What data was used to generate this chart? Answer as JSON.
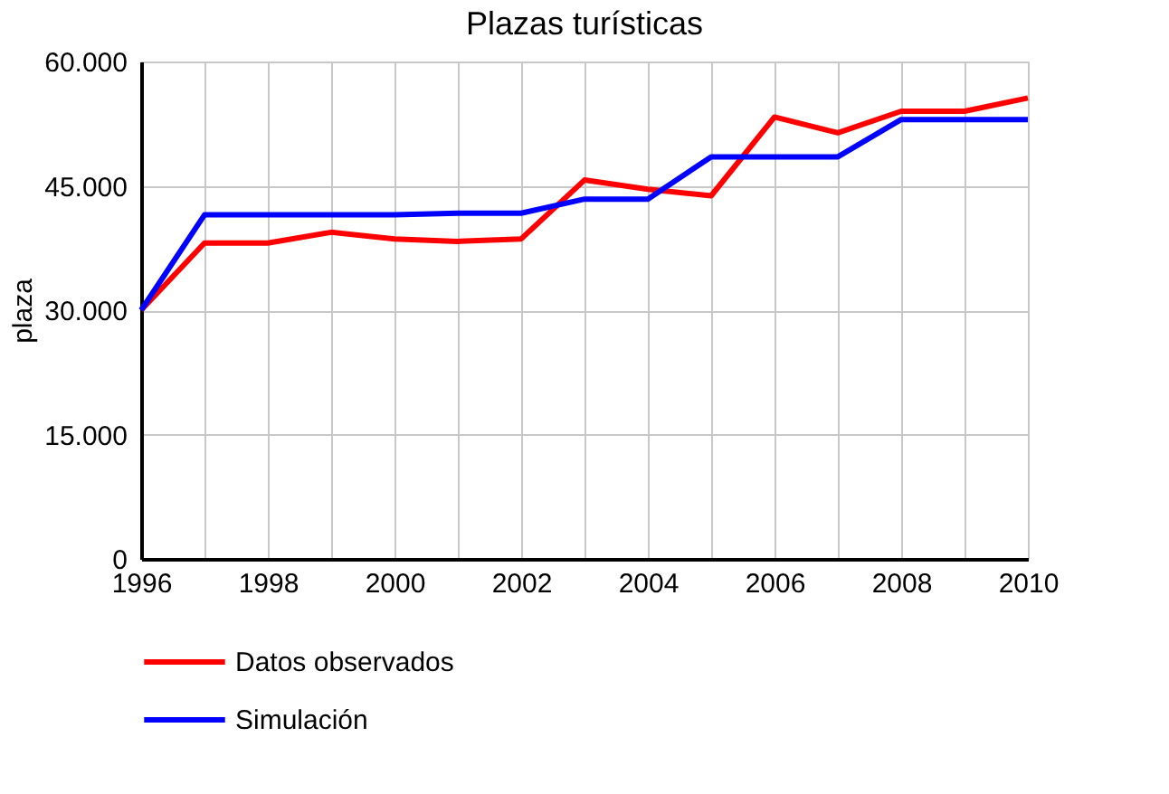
{
  "chart_data": {
    "type": "line",
    "title": "Plazas turísticas",
    "ylabel": "plaza",
    "x": [
      1996,
      1997,
      1998,
      1999,
      2000,
      2001,
      2002,
      2003,
      2004,
      2005,
      2006,
      2007,
      2008,
      2009,
      2010
    ],
    "series": [
      {
        "name": "Datos observados",
        "color": "#ff0000",
        "values": [
          30000,
          38100,
          38100,
          39400,
          38600,
          38300,
          38600,
          45700,
          44600,
          43800,
          53300,
          51400,
          54000,
          54000,
          55600
        ]
      },
      {
        "name": "Simulación",
        "color": "#0000ff",
        "values": [
          30000,
          41500,
          41500,
          41500,
          41500,
          41700,
          41700,
          43400,
          43400,
          48500,
          48500,
          48500,
          53000,
          53000,
          53000
        ]
      }
    ],
    "xlim": [
      1996,
      2010
    ],
    "xticks": [
      1996,
      {
        "value": 1997,
        "label": null
      },
      1998,
      {
        "value": 1999,
        "label": null
      },
      2000,
      {
        "value": 2001,
        "label": null
      },
      2002,
      {
        "value": 2003,
        "label": null
      },
      2004,
      {
        "value": 2005,
        "label": null
      },
      2006,
      {
        "value": 2007,
        "label": null
      },
      2008,
      {
        "value": 2009,
        "label": null
      },
      2010
    ],
    "ylim": [
      0,
      60000
    ],
    "yticks": [
      0,
      {
        "value": 15000,
        "label": "15.000"
      },
      {
        "value": 30000,
        "label": "30.000"
      },
      {
        "value": 45000,
        "label": "45.000"
      },
      {
        "value": 60000,
        "label": "60.000"
      }
    ],
    "grid": true,
    "legend": "bottom",
    "marker": "none",
    "line_style": "solid"
  }
}
